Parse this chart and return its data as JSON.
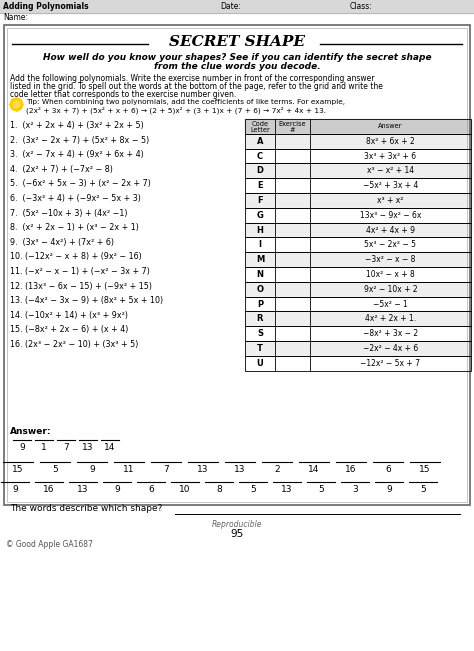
{
  "title": "SECRET SHAPE",
  "header_line1": "Adding Polynomials",
  "header_date": "Date:",
  "header_class": "Class:",
  "header_name": "Name:",
  "subtitle1": "How well do you know your shapes? See if you can identify the secret shape",
  "subtitle2": "from the clue words you decode.",
  "inst1": "Add the following polynomials. Write the exercise number in front of the corresponding answer",
  "inst2": "listed in the grid. To spell out the words at the bottom of the page, refer to the grid and write the",
  "inst3": "code letter that corresponds to the exercise number given.",
  "tip1": "Tip: When combining two polynomials, add the coefficients of like terms. For example,",
  "tip2": "(2x² + 3x + 7) + (5x² + x + 6) → (2 + 5)x² + (3 + 1)x + (7 + 6) → 7x² + 4x + 13.",
  "problems": [
    "1.  (x² + 2x + 4) + (3x² + 2x + 5)",
    "2.  (3x² − 2x + 7) + (5x² + 8x − 5)",
    "3.  (x² − 7x + 4) + (9x² + 6x + 4)",
    "4.  (2x² + 7) + (−7x² − 8)",
    "5.  (−6x² + 5x − 3) + (x² − 2x + 7)",
    "6.  (−3x² + 4) + (−9x² − 5x + 3)",
    "7.  (5x² −10x + 3) + (4x² −1)",
    "8.  (x² + 2x − 1) + (x³ − 2x + 1)",
    "9.  (3x³ − 4x²) + (7x² + 6)",
    "10. (−12x² − x + 8) + (9x² − 16)",
    "11. (−x² − x − 1) + (−x² − 3x + 7)",
    "12. (13x³ − 6x − 15) + (−9x² + 15)",
    "13. (−4x² − 3x − 9) + (8x² + 5x + 10)",
    "14. (−10x² + 14) + (x³ + 9x²)",
    "15. (−8x² + 2x − 6) + (x + 4)",
    "16. (2x³ − 2x² − 10) + (3x³ + 5)"
  ],
  "table_letters": [
    "A",
    "C",
    "D",
    "E",
    "F",
    "G",
    "H",
    "I",
    "M",
    "N",
    "O",
    "P",
    "R",
    "S",
    "T",
    "U"
  ],
  "table_answers": [
    "8x² + 6x + 2",
    "3x³ + 3x² + 6",
    "x³ − x² + 14",
    "−5x² + 3x + 4",
    "x³ + x²",
    "13x³ − 9x² − 6x",
    "4x² + 4x + 9",
    "5x³ − 2x² − 5",
    "−3x² − x − 8",
    "10x² − x + 8",
    "9x² − 10x + 2",
    "−5x² − 1",
    "4x² + 2x + 1.",
    "−8x² + 3x − 2",
    "−2x² − 4x + 6",
    "−12x² − 5x + 7"
  ],
  "answer_row1": [
    "9",
    "1",
    "7",
    "13",
    "14"
  ],
  "answer_row2": [
    "15",
    "5",
    "9",
    "11",
    "7",
    "13",
    "13",
    "2",
    "14",
    "16",
    "6",
    "15"
  ],
  "answer_row3": [
    "9",
    "16",
    "13",
    "9",
    "6",
    "10",
    "8",
    "5",
    "13",
    "5",
    "3",
    "9",
    "5"
  ],
  "footer_text": "The words describe which shape? ",
  "reproducible": "Reproducible",
  "page_num": "95",
  "copyright": "© Good Apple GA1687",
  "bg_color": "#ffffff"
}
